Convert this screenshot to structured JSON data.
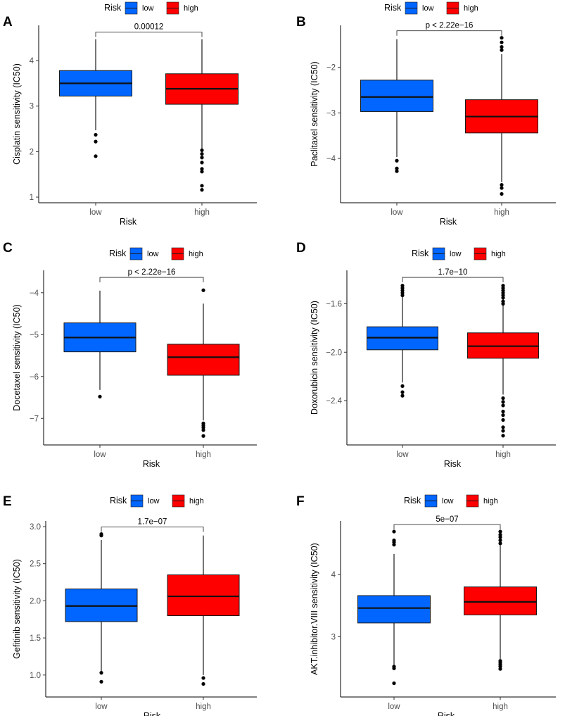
{
  "legend": {
    "title": "Risk",
    "items": [
      "low",
      "high"
    ]
  },
  "colors": {
    "low": "#0066ff",
    "high": "#ff0000",
    "outline": "#1a1a1a",
    "outlier": "#000000"
  },
  "chart_data": [
    {
      "type": "boxplot",
      "panel": "A",
      "title": "",
      "xlabel": "Risk",
      "ylabel": "Cisplatin sensitivity (IC50)",
      "categories": [
        "low",
        "high"
      ],
      "ylim": [
        1.0,
        4.65
      ],
      "yticks": [
        1,
        2,
        3,
        4
      ],
      "pvalue": "0.00012",
      "boxes": [
        {
          "name": "low",
          "q1": 3.22,
          "median": 3.5,
          "q3": 3.78,
          "whisker_low": 2.47,
          "whisker_high": 4.47,
          "outliers": [
            2.37,
            2.22,
            1.9
          ]
        },
        {
          "name": "high",
          "q1": 3.04,
          "median": 3.38,
          "q3": 3.71,
          "whisker_low": 2.07,
          "whisker_high": 4.47,
          "outliers": [
            2.03,
            1.95,
            1.87,
            1.76,
            1.62,
            1.56,
            1.25,
            1.16
          ]
        }
      ]
    },
    {
      "type": "boxplot",
      "panel": "B",
      "title": "",
      "xlabel": "Risk",
      "ylabel": "Paclitaxel sensitivity (IC50)",
      "categories": [
        "low",
        "high"
      ],
      "ylim": [
        -4.85,
        -1.2
      ],
      "yticks": [
        -4,
        -3,
        -2
      ],
      "pvalue": "p < 2.22e−16",
      "boxes": [
        {
          "name": "low",
          "q1": -2.97,
          "median": -2.65,
          "q3": -2.28,
          "whisker_low": -3.97,
          "whisker_high": -1.38,
          "outliers": [
            -4.05,
            -4.22,
            -4.28
          ]
        },
        {
          "name": "high",
          "q1": -3.44,
          "median": -3.08,
          "q3": -2.71,
          "whisker_low": -4.52,
          "whisker_high": -1.71,
          "outliers": [
            -1.35,
            -1.45,
            -1.55,
            -1.62,
            -4.58,
            -4.65,
            -4.78
          ]
        }
      ]
    },
    {
      "type": "boxplot",
      "panel": "C",
      "title": "",
      "xlabel": "Risk",
      "ylabel": "Docetaxel sensitivity (IC50)",
      "categories": [
        "low",
        "high"
      ],
      "ylim": [
        -7.5,
        -3.6
      ],
      "yticks": [
        -7,
        -6,
        -5,
        -4
      ],
      "pvalue": "p < 2.22e−16",
      "boxes": [
        {
          "name": "low",
          "q1": -5.41,
          "median": -5.07,
          "q3": -4.72,
          "whisker_low": -6.32,
          "whisker_high": -3.95,
          "outliers": [
            -6.48
          ]
        },
        {
          "name": "high",
          "q1": -5.97,
          "median": -5.54,
          "q3": -5.23,
          "whisker_low": -7.05,
          "whisker_high": -4.26,
          "outliers": [
            -3.94,
            -7.12,
            -7.17,
            -7.22,
            -7.28,
            -7.42
          ]
        }
      ]
    },
    {
      "type": "boxplot",
      "panel": "D",
      "title": "",
      "xlabel": "Risk",
      "ylabel": "Doxorubicin sensitivity (IC50)",
      "categories": [
        "low",
        "high"
      ],
      "ylim": [
        -2.72,
        -1.37
      ],
      "yticks": [
        -2.4,
        -2.0,
        -1.6
      ],
      "pvalue": "1.7e−10",
      "boxes": [
        {
          "name": "low",
          "q1": -1.98,
          "median": -1.88,
          "q3": -1.79,
          "whisker_low": -2.25,
          "whisker_high": -1.52,
          "outliers": [
            -1.45,
            -1.47,
            -1.49,
            -1.51,
            -1.53,
            -2.28,
            -2.33,
            -2.36
          ]
        },
        {
          "name": "high",
          "q1": -2.05,
          "median": -1.95,
          "q3": -1.84,
          "whisker_low": -2.35,
          "whisker_high": -1.55,
          "outliers": [
            -1.45,
            -1.47,
            -1.49,
            -1.51,
            -1.53,
            -1.55,
            -1.58,
            -1.6,
            -2.38,
            -2.41,
            -2.44,
            -2.49,
            -2.52,
            -2.56,
            -2.62,
            -2.65,
            -2.69
          ]
        }
      ]
    },
    {
      "type": "boxplot",
      "panel": "E",
      "title": "",
      "xlabel": "Risk",
      "ylabel": "Gefitinib sensitivity (IC50)",
      "categories": [
        "low",
        "high"
      ],
      "ylim": [
        0.78,
        3.0
      ],
      "yticks": [
        1.0,
        1.5,
        2.0,
        2.5,
        3.0
      ],
      "pvalue": "1.7e−07",
      "boxes": [
        {
          "name": "low",
          "q1": 1.72,
          "median": 1.93,
          "q3": 2.16,
          "whisker_low": 1.05,
          "whisker_high": 2.82,
          "outliers": [
            2.88,
            2.9,
            1.03,
            0.91
          ]
        },
        {
          "name": "high",
          "q1": 1.8,
          "median": 2.06,
          "q3": 2.35,
          "whisker_low": 1.0,
          "whisker_high": 2.88,
          "outliers": [
            0.96,
            0.88
          ]
        }
      ]
    },
    {
      "type": "boxplot",
      "panel": "F",
      "title": "",
      "xlabel": "Risk",
      "ylabel": "AKT.inhibitor.VIII sensitivity (IC50)",
      "categories": [
        "low",
        "high"
      ],
      "ylim": [
        2.12,
        4.77
      ],
      "yticks": [
        3,
        4
      ],
      "pvalue": "5e−07",
      "boxes": [
        {
          "name": "low",
          "q1": 3.22,
          "median": 3.46,
          "q3": 3.66,
          "whisker_low": 2.55,
          "whisker_high": 4.33,
          "outliers": [
            4.48,
            4.52,
            4.55,
            4.69,
            2.52,
            2.49,
            2.25
          ]
        },
        {
          "name": "high",
          "q1": 3.35,
          "median": 3.56,
          "q3": 3.8,
          "whisker_low": 2.64,
          "whisker_high": 4.47,
          "outliers": [
            4.5,
            4.55,
            4.6,
            4.64,
            4.69,
            2.61,
            2.58,
            2.55,
            2.52,
            2.48
          ]
        }
      ]
    }
  ]
}
